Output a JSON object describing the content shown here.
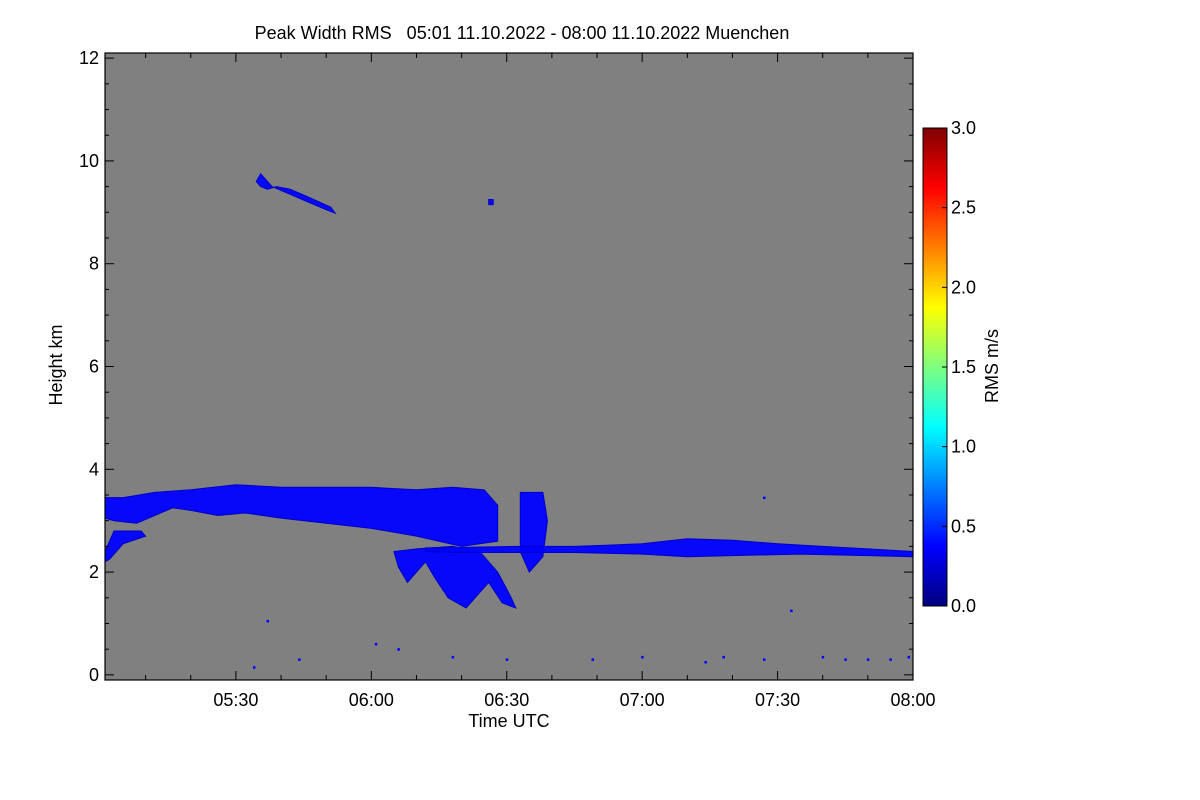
{
  "chart_data": {
    "type": "heatmap",
    "title": "Peak Width RMS   05:01 11.10.2022 - 08:00 11.10.2022 Muenchen",
    "xlabel": "Time UTC",
    "ylabel": "Height km",
    "x_range_minutes_utc": [
      301,
      480
    ],
    "y_range_km": [
      -0.1,
      12.1
    ],
    "x_ticks": [
      {
        "label": "05:30",
        "value": 330
      },
      {
        "label": "06:00",
        "value": 360
      },
      {
        "label": "06:30",
        "value": 390
      },
      {
        "label": "07:00",
        "value": 420
      },
      {
        "label": "07:30",
        "value": 450
      },
      {
        "label": "08:00",
        "value": 480
      }
    ],
    "y_ticks": [
      {
        "label": "0",
        "value": 0
      },
      {
        "label": "2",
        "value": 2
      },
      {
        "label": "4",
        "value": 4
      },
      {
        "label": "6",
        "value": 6
      },
      {
        "label": "8",
        "value": 8
      },
      {
        "label": "10",
        "value": 10
      },
      {
        "label": "12",
        "value": 12
      }
    ],
    "background_color": "#808080",
    "colorbar": {
      "label": "RMS m/s",
      "range": [
        0.0,
        3.0
      ],
      "ticks": [
        {
          "label": "0.0",
          "value": 0.0
        },
        {
          "label": "0.5",
          "value": 0.5
        },
        {
          "label": "1.0",
          "value": 1.0
        },
        {
          "label": "1.5",
          "value": 1.5
        },
        {
          "label": "2.0",
          "value": 2.0
        },
        {
          "label": "2.5",
          "value": 2.5
        },
        {
          "label": "3.0",
          "value": 3.0
        }
      ],
      "colors": [
        "#00007f",
        "#0000ff",
        "#007fff",
        "#00ffff",
        "#7fff7f",
        "#ffff00",
        "#ff7f00",
        "#ff0000",
        "#7f0000"
      ]
    },
    "regions": [
      {
        "name": "cirrus-layer",
        "rms_approx": 0.3,
        "points": [
          [
            334.5,
            9.6
          ],
          [
            335.5,
            9.75
          ],
          [
            338,
            9.5
          ],
          [
            342,
            9.35
          ],
          [
            346,
            9.2
          ],
          [
            350,
            9.05
          ],
          [
            352,
            8.98
          ],
          [
            351,
            9.1
          ],
          [
            346,
            9.3
          ],
          [
            342,
            9.45
          ],
          [
            339,
            9.5
          ],
          [
            337,
            9.45
          ],
          [
            335.5,
            9.5
          ]
        ]
      },
      {
        "name": "cirrus-speck",
        "rms_approx": 0.3,
        "points": [
          [
            386,
            9.25
          ],
          [
            387,
            9.25
          ],
          [
            387,
            9.15
          ],
          [
            386,
            9.15
          ]
        ]
      },
      {
        "name": "mid-cloud-deck",
        "rms_approx": 0.3,
        "points": [
          [
            301,
            3.45
          ],
          [
            305,
            3.45
          ],
          [
            312,
            3.55
          ],
          [
            320,
            3.6
          ],
          [
            330,
            3.7
          ],
          [
            340,
            3.65
          ],
          [
            350,
            3.65
          ],
          [
            360,
            3.65
          ],
          [
            370,
            3.6
          ],
          [
            378,
            3.65
          ],
          [
            385,
            3.6
          ],
          [
            388,
            3.3
          ],
          [
            388,
            2.6
          ],
          [
            380,
            2.5
          ],
          [
            370,
            2.7
          ],
          [
            360,
            2.85
          ],
          [
            350,
            2.95
          ],
          [
            340,
            3.05
          ],
          [
            332,
            3.15
          ],
          [
            326,
            3.1
          ],
          [
            320,
            3.2
          ],
          [
            316,
            3.25
          ],
          [
            312,
            3.1
          ],
          [
            308,
            2.95
          ],
          [
            303,
            3.0
          ],
          [
            301,
            3.05
          ]
        ]
      },
      {
        "name": "virga-shafts",
        "rms_approx": 0.3,
        "points": [
          [
            378,
            2.5
          ],
          [
            384,
            2.4
          ],
          [
            388,
            2.0
          ],
          [
            391,
            1.5
          ],
          [
            392,
            1.3
          ],
          [
            389,
            1.4
          ],
          [
            386,
            1.8
          ],
          [
            384,
            1.6
          ],
          [
            381,
            1.3
          ],
          [
            377,
            1.5
          ],
          [
            374,
            1.9
          ],
          [
            372,
            2.2
          ],
          [
            370,
            2.0
          ],
          [
            368,
            1.8
          ],
          [
            366,
            2.1
          ],
          [
            365,
            2.4
          ],
          [
            370,
            2.45
          ]
        ]
      },
      {
        "name": "embedded-cell",
        "rms_approx": 0.3,
        "points": [
          [
            393,
            3.55
          ],
          [
            398,
            3.55
          ],
          [
            399,
            3.0
          ],
          [
            398,
            2.3
          ],
          [
            395,
            2.0
          ],
          [
            393,
            2.4
          ]
        ]
      },
      {
        "name": "low-layer-left",
        "rms_approx": 0.35,
        "points": [
          [
            301,
            2.4
          ],
          [
            303,
            2.8
          ],
          [
            309,
            2.8
          ],
          [
            310,
            2.7
          ],
          [
            305,
            2.55
          ],
          [
            302,
            2.25
          ],
          [
            301,
            2.2
          ]
        ]
      },
      {
        "name": "stratiform-band",
        "rms_approx": 0.4,
        "points": [
          [
            372,
            2.47
          ],
          [
            380,
            2.48
          ],
          [
            392,
            2.5
          ],
          [
            405,
            2.5
          ],
          [
            412,
            2.52
          ],
          [
            420,
            2.55
          ],
          [
            430,
            2.65
          ],
          [
            440,
            2.62
          ],
          [
            450,
            2.55
          ],
          [
            460,
            2.5
          ],
          [
            470,
            2.45
          ],
          [
            480,
            2.4
          ],
          [
            480,
            2.3
          ],
          [
            470,
            2.32
          ],
          [
            455,
            2.35
          ],
          [
            440,
            2.32
          ],
          [
            430,
            2.3
          ],
          [
            420,
            2.35
          ],
          [
            405,
            2.38
          ],
          [
            390,
            2.38
          ],
          [
            380,
            2.38
          ],
          [
            372,
            2.4
          ]
        ]
      }
    ],
    "specks": [
      [
        334,
        0.15
      ],
      [
        337,
        1.05
      ],
      [
        344,
        0.3
      ],
      [
        361,
        0.6
      ],
      [
        366,
        0.5
      ],
      [
        378,
        0.35
      ],
      [
        390,
        0.3
      ],
      [
        409,
        0.3
      ],
      [
        420,
        0.35
      ],
      [
        434,
        0.25
      ],
      [
        438,
        0.35
      ],
      [
        447,
        0.3
      ],
      [
        453,
        1.25
      ],
      [
        460,
        0.35
      ],
      [
        465,
        0.3
      ],
      [
        470,
        0.3
      ],
      [
        475,
        0.3
      ],
      [
        479,
        0.35
      ],
      [
        447,
        3.45
      ]
    ]
  }
}
